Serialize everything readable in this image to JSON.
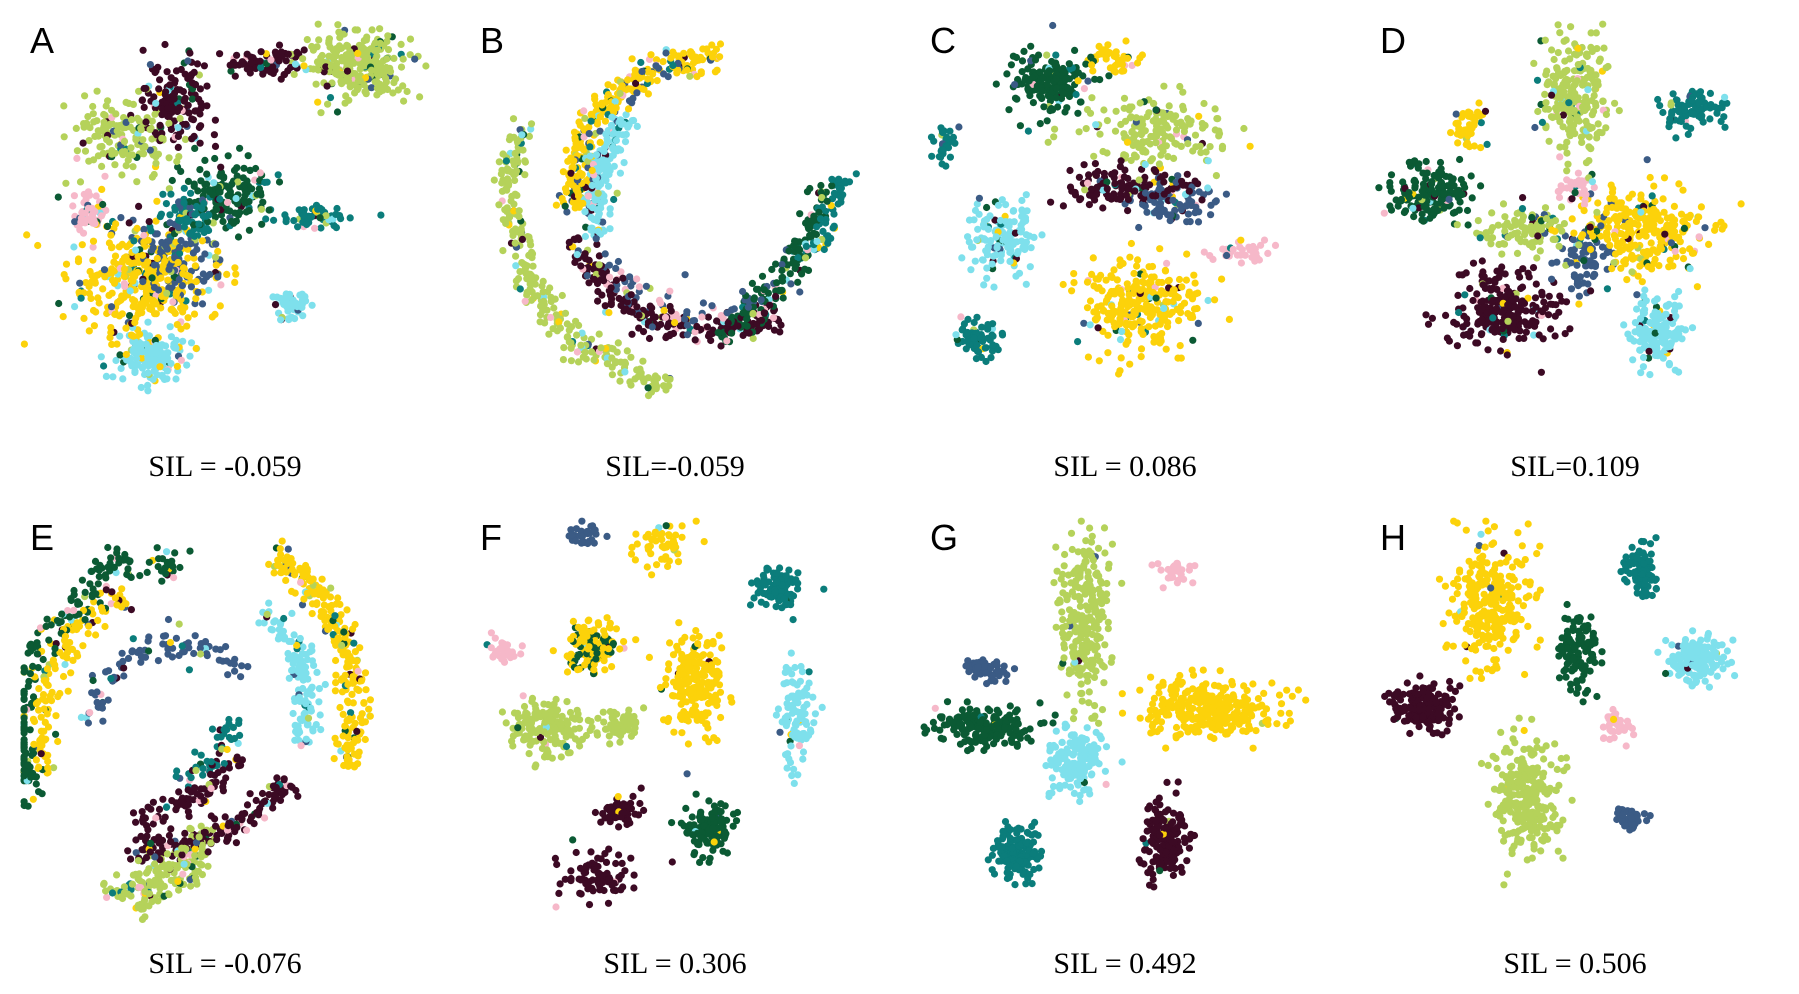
{
  "colors": {
    "lightgreen": "#b5d25a",
    "maroon": "#3c0a24",
    "darkgreen": "#0b5a34",
    "teal": "#0b7d7b",
    "yellow": "#fcd20a",
    "cyan": "#7ee0ec",
    "slate": "#3b5b85",
    "pink": "#f6b8c9"
  },
  "chart_data": [
    {
      "type": "scatter",
      "label": "A",
      "sil": "SIL = -0.059",
      "mixing": 0.55,
      "clusters": [
        {
          "color": "lightgreen",
          "x": 0.82,
          "y": 0.11,
          "rx": 0.13,
          "ry": 0.09,
          "n": 260
        },
        {
          "color": "lightgreen",
          "x": 0.25,
          "y": 0.28,
          "rx": 0.14,
          "ry": 0.12,
          "n": 160
        },
        {
          "color": "maroon",
          "x": 0.38,
          "y": 0.2,
          "rx": 0.09,
          "ry": 0.12,
          "n": 150
        },
        {
          "color": "maroon",
          "x": 0.6,
          "y": 0.1,
          "rx": 0.1,
          "ry": 0.04,
          "n": 80
        },
        {
          "color": "darkgreen",
          "x": 0.5,
          "y": 0.42,
          "rx": 0.12,
          "ry": 0.09,
          "n": 150
        },
        {
          "color": "teal",
          "x": 0.42,
          "y": 0.47,
          "rx": 0.07,
          "ry": 0.06,
          "n": 70
        },
        {
          "color": "teal",
          "x": 0.72,
          "y": 0.47,
          "rx": 0.12,
          "ry": 0.03,
          "n": 60
        },
        {
          "color": "yellow",
          "x": 0.3,
          "y": 0.62,
          "rx": 0.19,
          "ry": 0.16,
          "n": 350
        },
        {
          "color": "cyan",
          "x": 0.32,
          "y": 0.8,
          "rx": 0.1,
          "ry": 0.07,
          "n": 150
        },
        {
          "color": "cyan",
          "x": 0.66,
          "y": 0.68,
          "rx": 0.05,
          "ry": 0.04,
          "n": 50
        },
        {
          "color": "slate",
          "x": 0.38,
          "y": 0.56,
          "rx": 0.13,
          "ry": 0.1,
          "n": 120
        },
        {
          "color": "pink",
          "x": 0.17,
          "y": 0.46,
          "rx": 0.05,
          "ry": 0.05,
          "n": 60
        }
      ]
    },
    {
      "type": "scatter",
      "label": "B",
      "sil": "SIL=-0.059",
      "mixing": 0.5,
      "arcs": [
        {
          "color": "lightgreen",
          "cx": 0.58,
          "cy": 0.4,
          "r": 0.48,
          "a0": 100,
          "a1": 200,
          "n": 280
        },
        {
          "color": "maroon",
          "cx": 0.58,
          "cy": 0.4,
          "r": 0.34,
          "a0": 60,
          "a1": 160,
          "n": 220
        },
        {
          "color": "cyan",
          "cx": 0.58,
          "cy": 0.42,
          "r": 0.27,
          "a0": 160,
          "a1": 225,
          "n": 150
        },
        {
          "color": "yellow",
          "cx": 0.58,
          "cy": 0.42,
          "r": 0.33,
          "a0": 175,
          "a1": 275,
          "n": 260
        },
        {
          "color": "darkgreen",
          "cx": 0.35,
          "cy": 0.3,
          "r": 0.52,
          "a0": 10,
          "a1": 60,
          "n": 150
        },
        {
          "color": "slate",
          "cx": 0.58,
          "cy": 0.4,
          "r": 0.3,
          "a0": 40,
          "a1": 260,
          "n": 90
        },
        {
          "color": "teal",
          "cx": 0.58,
          "cy": 0.35,
          "r": 0.32,
          "a0": 0,
          "a1": 45,
          "n": 60
        },
        {
          "color": "pink",
          "cx": 0.58,
          "cy": 0.4,
          "r": 0.3,
          "a0": 50,
          "a1": 140,
          "n": 30
        }
      ]
    },
    {
      "type": "scatter",
      "label": "C",
      "sil": "SIL = 0.086",
      "mixing": 0.35,
      "clusters": [
        {
          "color": "darkgreen",
          "x": 0.32,
          "y": 0.15,
          "rx": 0.11,
          "ry": 0.09,
          "n": 170
        },
        {
          "color": "yellow",
          "x": 0.47,
          "y": 0.09,
          "rx": 0.07,
          "ry": 0.04,
          "n": 50
        },
        {
          "color": "lightgreen",
          "x": 0.58,
          "y": 0.26,
          "rx": 0.2,
          "ry": 0.09,
          "n": 180
        },
        {
          "color": "maroon",
          "x": 0.5,
          "y": 0.4,
          "rx": 0.18,
          "ry": 0.05,
          "n": 130
        },
        {
          "color": "slate",
          "x": 0.62,
          "y": 0.43,
          "rx": 0.13,
          "ry": 0.06,
          "n": 90
        },
        {
          "color": "cyan",
          "x": 0.2,
          "y": 0.52,
          "rx": 0.09,
          "ry": 0.1,
          "n": 140
        },
        {
          "color": "yellow",
          "x": 0.54,
          "y": 0.68,
          "rx": 0.16,
          "ry": 0.12,
          "n": 280
        },
        {
          "color": "teal",
          "x": 0.14,
          "y": 0.76,
          "rx": 0.06,
          "ry": 0.05,
          "n": 70
        },
        {
          "color": "teal",
          "x": 0.06,
          "y": 0.29,
          "rx": 0.03,
          "ry": 0.05,
          "n": 30
        },
        {
          "color": "pink",
          "x": 0.78,
          "y": 0.55,
          "rx": 0.08,
          "ry": 0.03,
          "n": 35
        }
      ]
    },
    {
      "type": "scatter",
      "label": "D",
      "sil": "SIL=0.109",
      "mixing": 0.3,
      "clusters": [
        {
          "color": "lightgreen",
          "x": 0.5,
          "y": 0.17,
          "rx": 0.09,
          "ry": 0.17,
          "n": 230
        },
        {
          "color": "teal",
          "x": 0.78,
          "y": 0.22,
          "rx": 0.1,
          "ry": 0.06,
          "n": 80
        },
        {
          "color": "yellow",
          "x": 0.24,
          "y": 0.26,
          "rx": 0.04,
          "ry": 0.06,
          "n": 40
        },
        {
          "color": "darkgreen",
          "x": 0.14,
          "y": 0.41,
          "rx": 0.11,
          "ry": 0.08,
          "n": 170
        },
        {
          "color": "pink",
          "x": 0.5,
          "y": 0.4,
          "rx": 0.05,
          "ry": 0.04,
          "n": 40
        },
        {
          "color": "lightgreen",
          "x": 0.38,
          "y": 0.5,
          "rx": 0.14,
          "ry": 0.07,
          "n": 110
        },
        {
          "color": "yellow",
          "x": 0.67,
          "y": 0.5,
          "rx": 0.18,
          "ry": 0.11,
          "n": 300
        },
        {
          "color": "maroon",
          "x": 0.33,
          "y": 0.69,
          "rx": 0.14,
          "ry": 0.1,
          "n": 240
        },
        {
          "color": "slate",
          "x": 0.53,
          "y": 0.58,
          "rx": 0.08,
          "ry": 0.08,
          "n": 70
        },
        {
          "color": "cyan",
          "x": 0.7,
          "y": 0.74,
          "rx": 0.08,
          "ry": 0.09,
          "n": 150
        }
      ]
    },
    {
      "type": "scatter",
      "label": "E",
      "sil": "SIL = -0.076",
      "mixing": 0.5,
      "arcs": [
        {
          "color": "maroon",
          "cx": 0.3,
          "cy": 0.33,
          "r": 0.46,
          "a0": 40,
          "a1": 95,
          "n": 150
        },
        {
          "color": "maroon",
          "cx": 0.25,
          "cy": 0.4,
          "r": 0.32,
          "a0": 30,
          "a1": 85,
          "n": 80
        },
        {
          "color": "lightgreen",
          "cx": 0.08,
          "cy": 0.42,
          "r": 0.5,
          "a0": 40,
          "a1": 75,
          "n": 120
        },
        {
          "color": "lightgreen",
          "cx": 0.15,
          "cy": 0.55,
          "r": 0.4,
          "a0": 40,
          "a1": 70,
          "n": 60
        },
        {
          "color": "yellow",
          "cx": 0.4,
          "cy": 0.45,
          "r": 0.42,
          "a0": -60,
          "a1": 20,
          "n": 240
        },
        {
          "color": "cyan",
          "cx": 0.4,
          "cy": 0.45,
          "r": 0.3,
          "a0": -50,
          "a1": 20,
          "n": 120
        },
        {
          "color": "darkgreen",
          "cx": 0.38,
          "cy": 0.5,
          "r": 0.38,
          "a0": 150,
          "a1": 240,
          "n": 150
        },
        {
          "color": "yellow",
          "cx": 0.38,
          "cy": 0.5,
          "r": 0.33,
          "a0": 160,
          "a1": 250,
          "n": 130
        },
        {
          "color": "slate",
          "cx": 0.38,
          "cy": 0.5,
          "r": 0.2,
          "a0": 180,
          "a1": 330,
          "n": 90
        },
        {
          "color": "teal",
          "cx": 0.38,
          "cy": 0.48,
          "r": 0.14,
          "a0": 0,
          "a1": 90,
          "n": 50
        },
        {
          "color": "darkgreen",
          "cx": 0.3,
          "cy": 0.3,
          "r": 0.2,
          "a0": 230,
          "a1": 300,
          "n": 60
        }
      ]
    },
    {
      "type": "scatter",
      "label": "F",
      "sil": "SIL = 0.306",
      "mixing": 0.1,
      "clusters": [
        {
          "color": "slate",
          "x": 0.27,
          "y": 0.04,
          "rx": 0.04,
          "ry": 0.04,
          "n": 30
        },
        {
          "color": "yellow",
          "x": 0.47,
          "y": 0.07,
          "rx": 0.08,
          "ry": 0.06,
          "n": 50
        },
        {
          "color": "teal",
          "x": 0.75,
          "y": 0.17,
          "rx": 0.07,
          "ry": 0.05,
          "n": 90
        },
        {
          "color": "pink",
          "x": 0.08,
          "y": 0.32,
          "rx": 0.05,
          "ry": 0.04,
          "n": 30
        },
        {
          "color": "yellow",
          "x": 0.3,
          "y": 0.31,
          "rx": 0.07,
          "ry": 0.07,
          "n": 90
        },
        {
          "color": "darkgreen",
          "x": 0.3,
          "y": 0.31,
          "rx": 0.06,
          "ry": 0.06,
          "n": 50
        },
        {
          "color": "yellow",
          "x": 0.55,
          "y": 0.39,
          "rx": 0.08,
          "ry": 0.13,
          "n": 200
        },
        {
          "color": "cyan",
          "x": 0.8,
          "y": 0.46,
          "rx": 0.05,
          "ry": 0.15,
          "n": 100
        },
        {
          "color": "lightgreen",
          "x": 0.19,
          "y": 0.5,
          "rx": 0.09,
          "ry": 0.07,
          "n": 170
        },
        {
          "color": "lightgreen",
          "x": 0.36,
          "y": 0.49,
          "rx": 0.06,
          "ry": 0.04,
          "n": 50
        },
        {
          "color": "maroon",
          "x": 0.36,
          "y": 0.7,
          "rx": 0.05,
          "ry": 0.04,
          "n": 60
        },
        {
          "color": "maroon",
          "x": 0.32,
          "y": 0.85,
          "rx": 0.09,
          "ry": 0.07,
          "n": 80
        },
        {
          "color": "darkgreen",
          "x": 0.58,
          "y": 0.74,
          "rx": 0.07,
          "ry": 0.07,
          "n": 120
        }
      ]
    },
    {
      "type": "scatter",
      "label": "G",
      "sil": "SIL = 0.492",
      "mixing": 0.05,
      "clusters": [
        {
          "color": "lightgreen",
          "x": 0.4,
          "y": 0.24,
          "rx": 0.07,
          "ry": 0.22,
          "n": 260
        },
        {
          "color": "pink",
          "x": 0.62,
          "y": 0.13,
          "rx": 0.04,
          "ry": 0.03,
          "n": 35
        },
        {
          "color": "slate",
          "x": 0.16,
          "y": 0.36,
          "rx": 0.05,
          "ry": 0.04,
          "n": 50
        },
        {
          "color": "yellow",
          "x": 0.7,
          "y": 0.46,
          "rx": 0.18,
          "ry": 0.08,
          "n": 300
        },
        {
          "color": "darkgreen",
          "x": 0.16,
          "y": 0.5,
          "rx": 0.13,
          "ry": 0.05,
          "n": 180
        },
        {
          "color": "cyan",
          "x": 0.38,
          "y": 0.58,
          "rx": 0.07,
          "ry": 0.09,
          "n": 150
        },
        {
          "color": "maroon",
          "x": 0.6,
          "y": 0.77,
          "rx": 0.06,
          "ry": 0.1,
          "n": 170
        },
        {
          "color": "teal",
          "x": 0.24,
          "y": 0.8,
          "rx": 0.06,
          "ry": 0.07,
          "n": 150
        }
      ]
    },
    {
      "type": "scatter",
      "label": "H",
      "sil": "SIL = 0.506",
      "mixing": 0.05,
      "clusters": [
        {
          "color": "yellow",
          "x": 0.29,
          "y": 0.2,
          "rx": 0.1,
          "ry": 0.16,
          "n": 270
        },
        {
          "color": "teal",
          "x": 0.66,
          "y": 0.13,
          "rx": 0.05,
          "ry": 0.07,
          "n": 90
        },
        {
          "color": "darkgreen",
          "x": 0.51,
          "y": 0.32,
          "rx": 0.05,
          "ry": 0.1,
          "n": 110
        },
        {
          "color": "cyan",
          "x": 0.8,
          "y": 0.34,
          "rx": 0.08,
          "ry": 0.06,
          "n": 150
        },
        {
          "color": "maroon",
          "x": 0.13,
          "y": 0.45,
          "rx": 0.09,
          "ry": 0.06,
          "n": 170
        },
        {
          "color": "lightgreen",
          "x": 0.38,
          "y": 0.67,
          "rx": 0.08,
          "ry": 0.16,
          "n": 280
        },
        {
          "color": "pink",
          "x": 0.6,
          "y": 0.5,
          "rx": 0.04,
          "ry": 0.04,
          "n": 45
        },
        {
          "color": "slate",
          "x": 0.63,
          "y": 0.72,
          "rx": 0.04,
          "ry": 0.03,
          "n": 50
        }
      ]
    }
  ]
}
